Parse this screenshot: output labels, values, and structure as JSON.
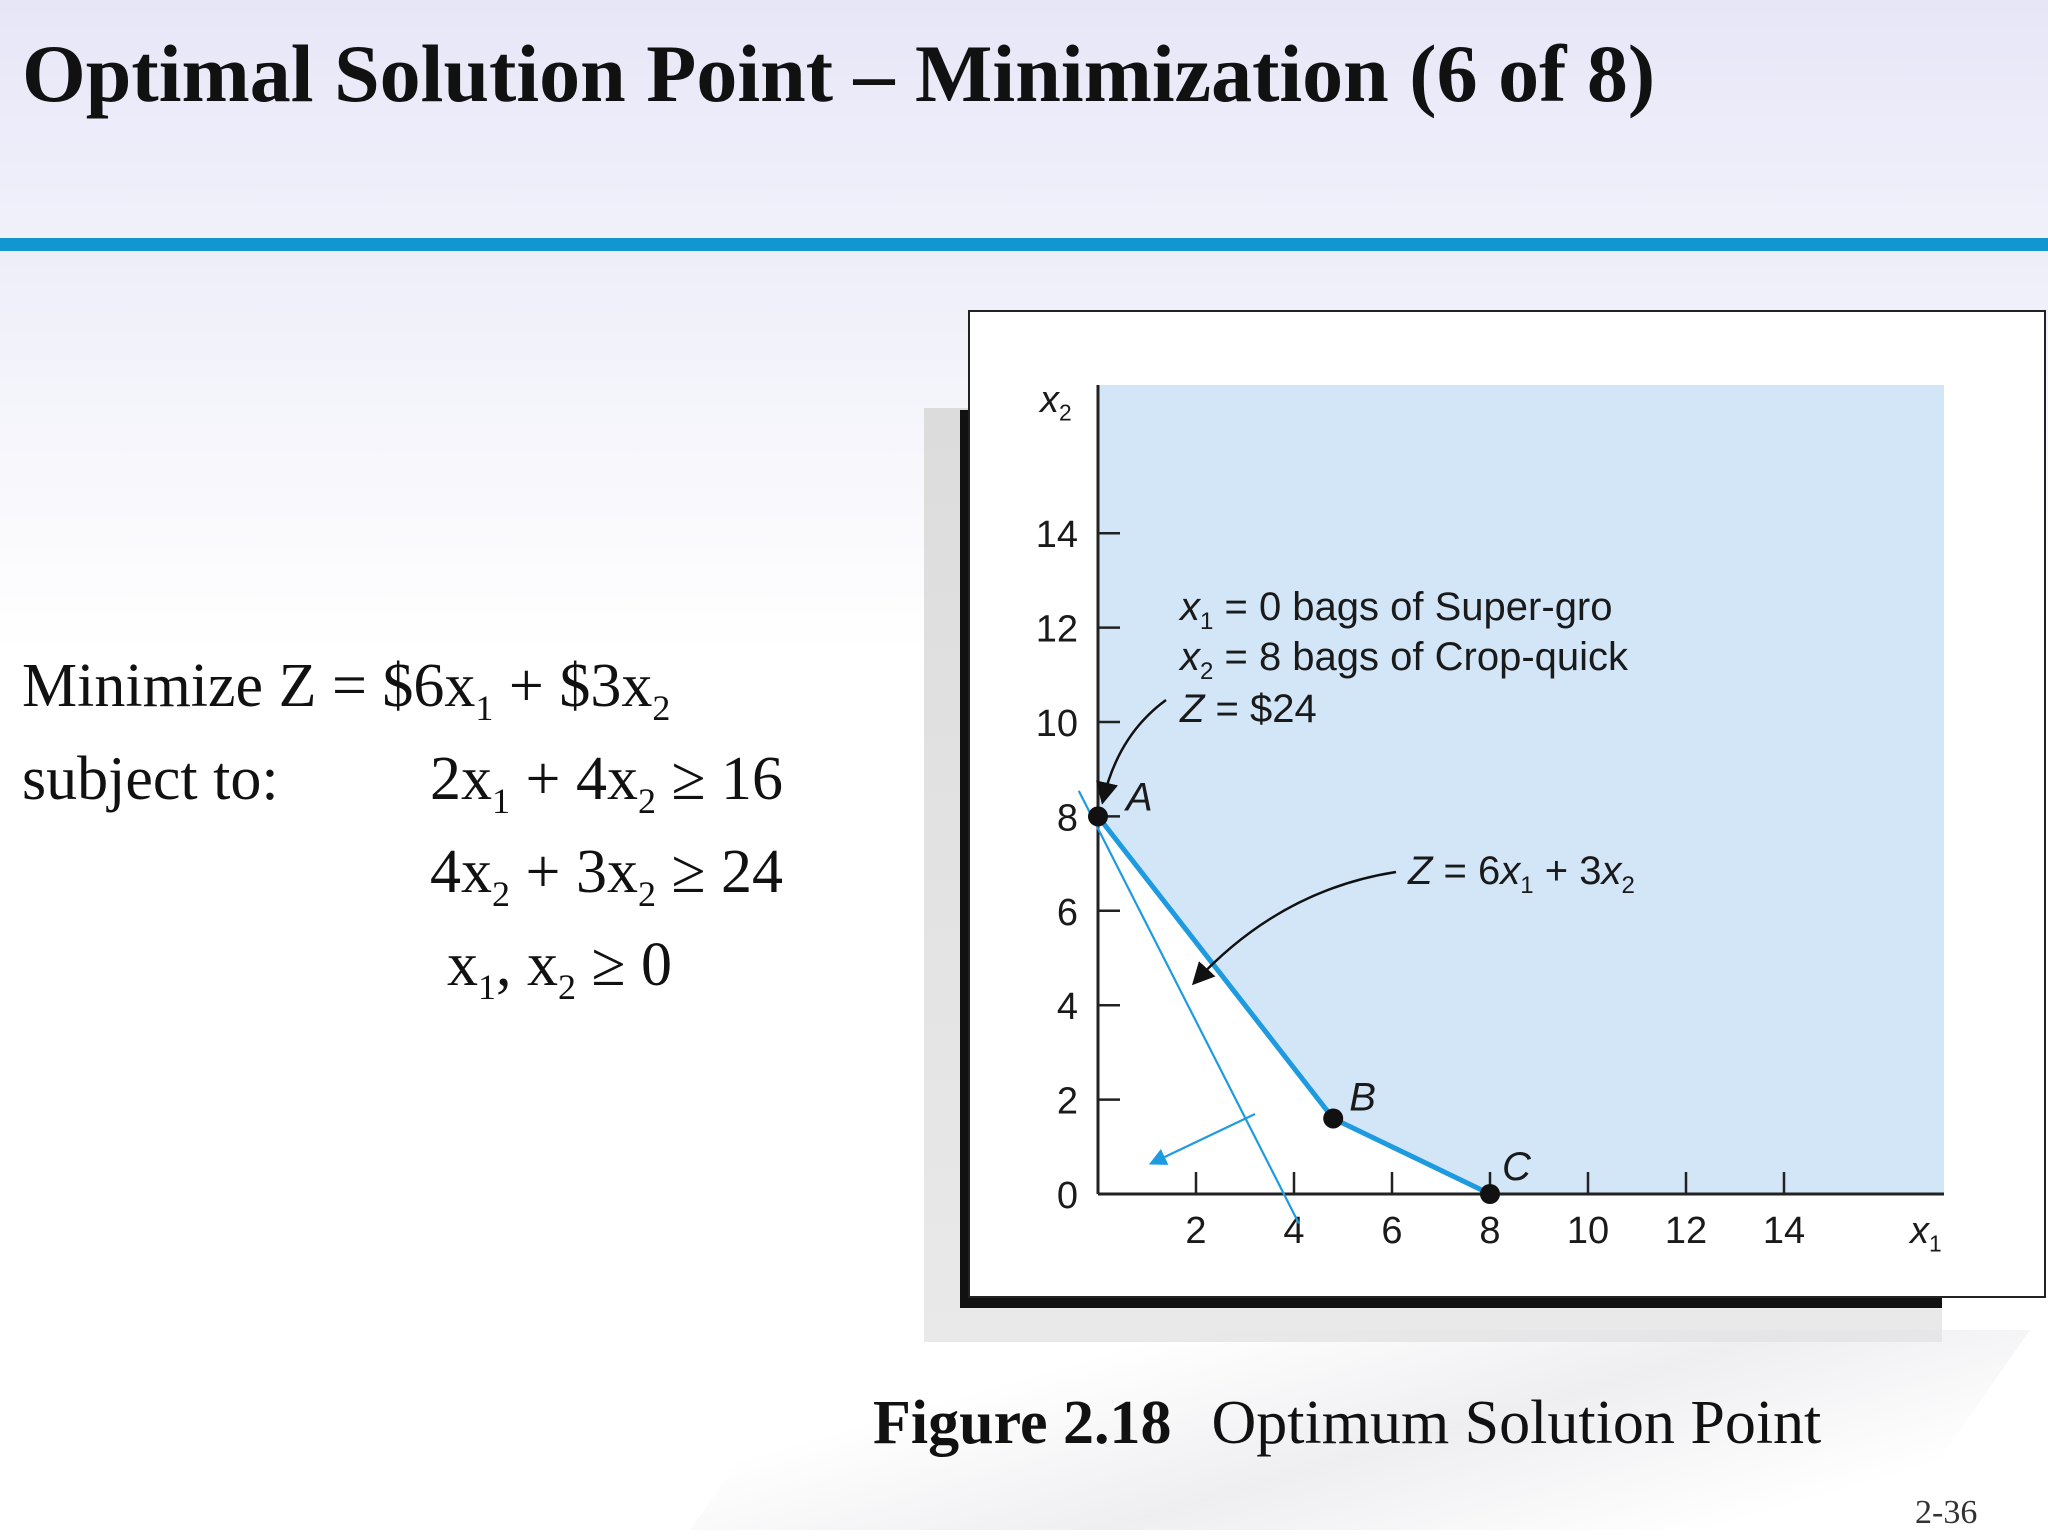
{
  "slide": {
    "title": "Optimal Solution Point – Minimization (6 of 8)",
    "page_number": "2-36",
    "colors": {
      "accent_rule": "#1296cf",
      "feasible_region": "#d3e6f8",
      "constraint_line": "#1e9be0",
      "header_band": "#e8e8f8"
    }
  },
  "formulation": {
    "objective": {
      "label": "Minimize Z = $6x",
      "s1": "1",
      "mid": " + $3x",
      "s2": "2"
    },
    "subject_to_label": "subject to:",
    "constraint1": {
      "a": "2x",
      "s1": "1",
      "b": " + 4x",
      "s2": "2",
      "rhs": " ≥ 16"
    },
    "constraint2": {
      "a": "4x",
      "s1": "2",
      "b": " + 3x",
      "s2": "2",
      "rhs": " ≥ 24"
    },
    "nonneg": {
      "a": "x",
      "s1": "1",
      "b": ", x",
      "s2": "2",
      "rhs": " ≥ 0"
    }
  },
  "figure": {
    "number": "Figure 2.18",
    "caption": "Optimum Solution Point"
  },
  "chart_data": {
    "type": "line",
    "xlabel": "x",
    "xlabel_sub": "1",
    "ylabel": "x",
    "ylabel_sub": "2",
    "xlim": [
      0,
      14
    ],
    "ylim": [
      0,
      14
    ],
    "x_ticks": [
      "2",
      "4",
      "6",
      "8",
      "10",
      "12",
      "14"
    ],
    "y_ticks": [
      "0",
      "2",
      "4",
      "6",
      "8",
      "10",
      "12",
      "14"
    ],
    "grid": false,
    "feasible_region_boundary": [
      [
        0,
        8
      ],
      [
        4.8,
        1.6
      ],
      [
        8,
        0
      ]
    ],
    "points": [
      {
        "label": "A",
        "x": 0,
        "y": 8
      },
      {
        "label": "B",
        "x": 4.8,
        "y": 1.6
      },
      {
        "label": "C",
        "x": 8,
        "y": 0
      }
    ],
    "objective_line": {
      "label": "Z = 6x",
      "s1": "1",
      "mid": " + 3x",
      "s2": "2",
      "from": [
        -0.8,
        9.6
      ],
      "to": [
        4.1,
        -0.2
      ]
    },
    "optimal_annotation": {
      "line1": {
        "var": "x",
        "sub": "1",
        "text": " = 0 bags of Super-gro"
      },
      "line2": {
        "var": "x",
        "sub": "2",
        "text": " = 8 bags of Crop-quick"
      },
      "line3": {
        "var": "Z",
        "text": " = $24"
      }
    }
  }
}
